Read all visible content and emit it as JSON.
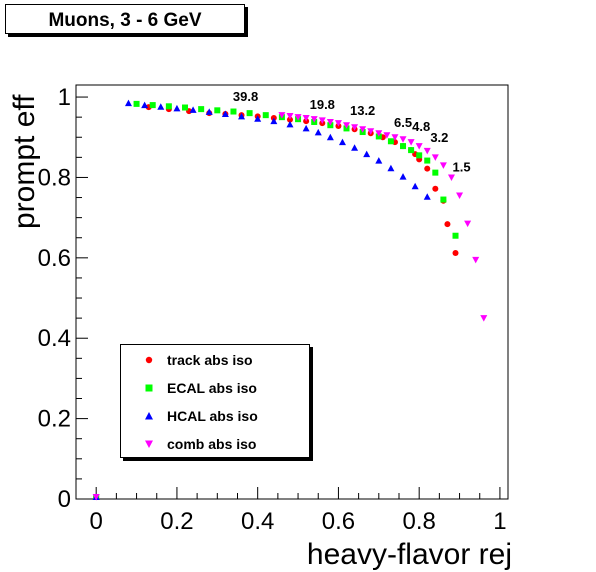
{
  "title": "Muons, 3 - 6 GeV",
  "chart_data": {
    "type": "scatter",
    "title": "Muons, 3 - 6 GeV",
    "xlabel": "heavy-flavor rej",
    "ylabel": "prompt eff",
    "xlim": [
      -0.05,
      1.02
    ],
    "ylim": [
      0,
      1.03
    ],
    "xticks": [
      0,
      0.2,
      0.4,
      0.6,
      0.8,
      1
    ],
    "yticks": [
      0,
      0.2,
      0.4,
      0.6,
      0.8,
      1
    ],
    "xticklabels": [
      "0",
      "0.2",
      "0.4",
      "0.6",
      "0.8",
      "1"
    ],
    "yticklabels": [
      "0",
      "0.2",
      "0.4",
      "0.6",
      "0.8",
      "1"
    ],
    "grid": false,
    "legend_position": "bottom-left",
    "series": [
      {
        "name": "track abs iso",
        "marker": "circle",
        "color": "#ff0000",
        "x": [
          0,
          0.13,
          0.18,
          0.23,
          0.28,
          0.32,
          0.36,
          0.4,
          0.44,
          0.48,
          0.52,
          0.56,
          0.6,
          0.64,
          0.68,
          0.71,
          0.74,
          0.76,
          0.78,
          0.79,
          0.8,
          0.82,
          0.84,
          0.86,
          0.87,
          0.89
        ],
        "y": [
          0.005,
          0.975,
          0.97,
          0.965,
          0.96,
          0.958,
          0.955,
          0.952,
          0.948,
          0.944,
          0.94,
          0.935,
          0.928,
          0.92,
          0.91,
          0.9,
          0.888,
          0.878,
          0.868,
          0.858,
          0.845,
          0.822,
          0.772,
          0.742,
          0.684,
          0.612
        ]
      },
      {
        "name": "ECAL abs iso",
        "marker": "square",
        "color": "#00ff00",
        "x": [
          0,
          0.1,
          0.14,
          0.18,
          0.22,
          0.26,
          0.3,
          0.34,
          0.38,
          0.42,
          0.46,
          0.5,
          0.54,
          0.58,
          0.62,
          0.66,
          0.7,
          0.73,
          0.76,
          0.78,
          0.8,
          0.82,
          0.84,
          0.86,
          0.89
        ],
        "y": [
          0.005,
          0.983,
          0.98,
          0.977,
          0.974,
          0.97,
          0.967,
          0.964,
          0.96,
          0.955,
          0.95,
          0.945,
          0.938,
          0.93,
          0.922,
          0.913,
          0.902,
          0.89,
          0.878,
          0.868,
          0.855,
          0.842,
          0.812,
          0.745,
          0.655
        ]
      },
      {
        "name": "HCAL abs iso",
        "marker": "triangle-up",
        "color": "#0000ff",
        "x": [
          0,
          0.08,
          0.12,
          0.16,
          0.2,
          0.24,
          0.28,
          0.32,
          0.36,
          0.4,
          0.44,
          0.48,
          0.52,
          0.55,
          0.58,
          0.61,
          0.64,
          0.67,
          0.7,
          0.73,
          0.76,
          0.79,
          0.82
        ],
        "y": [
          0.005,
          0.985,
          0.98,
          0.976,
          0.972,
          0.968,
          0.963,
          0.958,
          0.952,
          0.946,
          0.94,
          0.932,
          0.922,
          0.912,
          0.9,
          0.888,
          0.874,
          0.858,
          0.842,
          0.823,
          0.802,
          0.778,
          0.752
        ]
      },
      {
        "name": "comb abs iso",
        "marker": "triangle-down",
        "color": "#ff00ff",
        "x": [
          0,
          0.46,
          0.48,
          0.5,
          0.52,
          0.54,
          0.56,
          0.58,
          0.6,
          0.62,
          0.64,
          0.66,
          0.68,
          0.7,
          0.72,
          0.74,
          0.76,
          0.78,
          0.8,
          0.82,
          0.84,
          0.86,
          0.88,
          0.9,
          0.92,
          0.94,
          0.96
        ],
        "y": [
          0.005,
          0.955,
          0.953,
          0.95,
          0.948,
          0.945,
          0.942,
          0.938,
          0.935,
          0.93,
          0.925,
          0.92,
          0.915,
          0.91,
          0.905,
          0.9,
          0.895,
          0.888,
          0.878,
          0.866,
          0.85,
          0.83,
          0.8,
          0.755,
          0.685,
          0.595,
          0.45
        ]
      }
    ],
    "annotations": [
      {
        "text": "39.8",
        "x": 0.37,
        "y": 0.98
      },
      {
        "text": "19.8",
        "x": 0.56,
        "y": 0.96
      },
      {
        "text": "13.2",
        "x": 0.66,
        "y": 0.945
      },
      {
        "text": "6.5",
        "x": 0.76,
        "y": 0.915
      },
      {
        "text": "4.8",
        "x": 0.805,
        "y": 0.905
      },
      {
        "text": "3.2",
        "x": 0.85,
        "y": 0.878
      },
      {
        "text": "1.5",
        "x": 0.905,
        "y": 0.805
      }
    ]
  }
}
